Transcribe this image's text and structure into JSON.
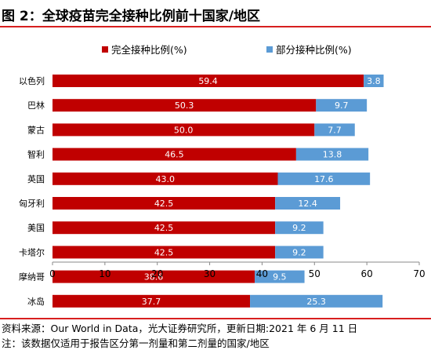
{
  "title": "图 2：全球疫苗完全接种比例前十国家/地区",
  "source": "资料来源：Our World in Data，光大证券研究所，更新日期:2021 年 6 月 11 日",
  "note": "注：该数据仅适用于报告区分第一剂量和第二剂量的国家/地区",
  "colors": {
    "accent": "#d71f1f",
    "full": "#c00000",
    "partial": "#5b9bd5"
  },
  "chart_data": {
    "type": "bar",
    "orientation": "horizontal",
    "stacked": true,
    "categories": [
      "以色列",
      "巴林",
      "蒙古",
      "智利",
      "英国",
      "匈牙利",
      "美国",
      "卡塔尔",
      "摩纳哥",
      "冰岛"
    ],
    "series": [
      {
        "name": "完全接种比例(%)",
        "values": [
          59.4,
          50.3,
          50.0,
          46.5,
          43.0,
          42.5,
          42.5,
          42.5,
          38.6,
          37.7
        ],
        "labels": [
          "59.4",
          "50.3",
          "50.0",
          "46.5",
          "43.0",
          "42.5",
          "42.5",
          "42.5",
          "38.6",
          "37.7"
        ]
      },
      {
        "name": "部分接种比例(%)",
        "values": [
          3.8,
          9.7,
          7.7,
          13.8,
          17.6,
          12.4,
          9.2,
          9.2,
          9.5,
          25.3
        ],
        "labels": [
          "3.8",
          "9.7",
          "7.7",
          "13.8",
          "17.6",
          "12.4",
          "9.2",
          "9.2",
          "9.5",
          "25.3"
        ]
      }
    ],
    "xlim": [
      0,
      70
    ],
    "xticks": [
      "0",
      "10",
      "20",
      "30",
      "40",
      "50",
      "60",
      "70"
    ],
    "legend_position": "top",
    "grid": false
  }
}
